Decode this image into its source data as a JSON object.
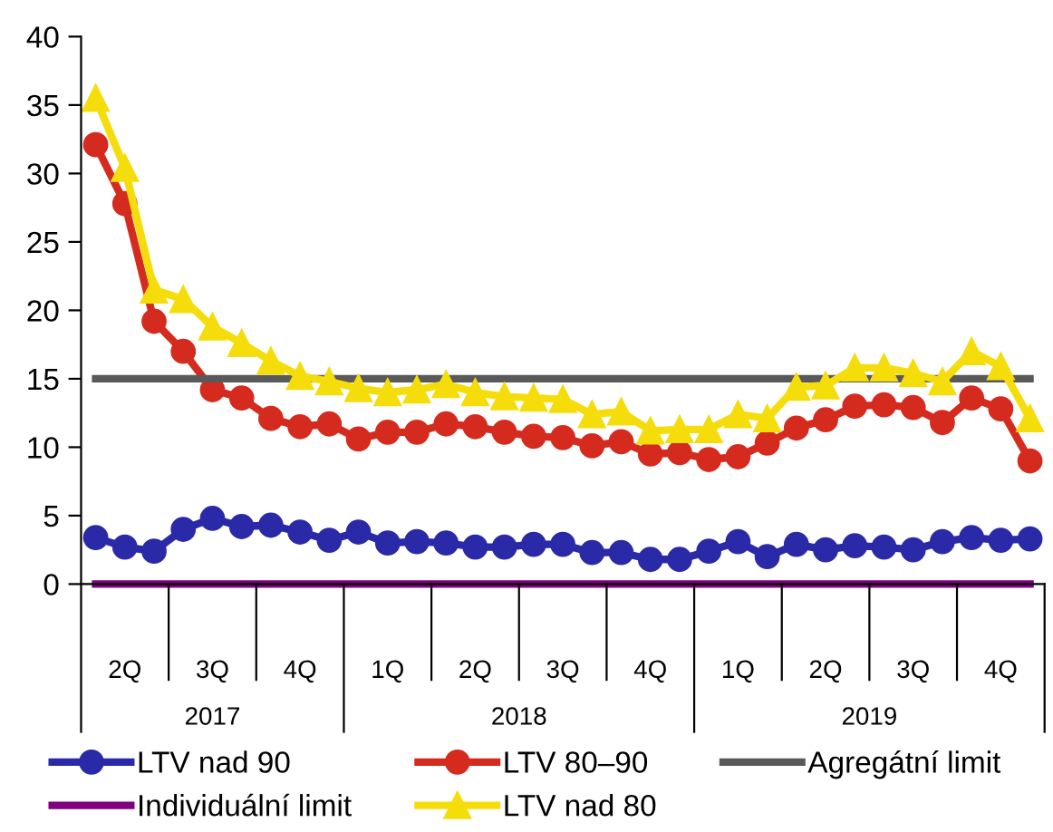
{
  "chart_data": {
    "type": "line",
    "categories": [
      null,
      "2Q",
      null,
      null,
      "3Q",
      null,
      null,
      "4Q",
      null,
      null,
      "1Q",
      null,
      null,
      "2Q",
      null,
      null,
      "3Q",
      null,
      null,
      "4Q",
      null,
      null,
      "1Q",
      null,
      null,
      "2Q",
      null,
      null,
      "3Q",
      null,
      null,
      "4Q",
      null
    ],
    "series": [
      {
        "name": "LTV nad 90",
        "color": "#2a2aa8",
        "marker": "circle",
        "values": [
          3.4,
          2.7,
          2.4,
          4.0,
          4.8,
          4.2,
          4.3,
          3.8,
          3.2,
          3.8,
          3.0,
          3.1,
          3.0,
          2.7,
          2.7,
          2.9,
          2.9,
          2.3,
          2.3,
          1.8,
          1.8,
          2.4,
          3.1,
          2.0,
          2.9,
          2.5,
          2.8,
          2.7,
          2.5,
          3.1,
          3.4,
          3.2,
          3.3
        ]
      },
      {
        "name": "LTV 80–90",
        "color": "#d52b1e",
        "marker": "circle",
        "values": [
          32.1,
          27.8,
          19.2,
          17.0,
          14.2,
          13.6,
          12.1,
          11.5,
          11.7,
          10.6,
          11.1,
          11.1,
          11.7,
          11.5,
          11.1,
          10.8,
          10.7,
          10.1,
          10.4,
          9.5,
          9.6,
          9.1,
          9.3,
          10.3,
          11.4,
          12.0,
          13.0,
          13.1,
          12.9,
          11.8,
          13.6,
          12.8,
          9.0
        ]
      },
      {
        "name": "Agregátní limit",
        "color": "#595959",
        "marker": "none",
        "values": [
          15,
          15,
          15,
          15,
          15,
          15,
          15,
          15,
          15,
          15,
          15,
          15,
          15,
          15,
          15,
          15,
          15,
          15,
          15,
          15,
          15,
          15,
          15,
          15,
          15,
          15,
          15,
          15,
          15,
          15,
          15,
          15,
          15
        ]
      },
      {
        "name": "Individuální limit",
        "color": "#800080",
        "marker": "none",
        "values": [
          0,
          0,
          0,
          0,
          0,
          0,
          0,
          0,
          0,
          0,
          0,
          0,
          0,
          0,
          0,
          0,
          0,
          0,
          0,
          0,
          0,
          0,
          0,
          0,
          0,
          0,
          0,
          0,
          0,
          0,
          0,
          0,
          0
        ]
      },
      {
        "name": "LTV nad 80",
        "color": "#f5dd0c",
        "marker": "triangle",
        "values": [
          35.5,
          30.4,
          21.5,
          20.8,
          18.8,
          17.6,
          16.3,
          15.2,
          14.8,
          14.3,
          14.0,
          14.2,
          14.6,
          14.0,
          13.7,
          13.6,
          13.5,
          12.4,
          12.6,
          11.2,
          11.3,
          11.3,
          12.4,
          12.1,
          14.4,
          14.5,
          15.8,
          15.8,
          15.4,
          14.8,
          17.0,
          15.9,
          12.1
        ]
      }
    ],
    "ylim": [
      0,
      40
    ],
    "yticks": [
      0,
      5,
      10,
      15,
      20,
      25,
      30,
      35,
      40
    ],
    "annotations": [
      "2017",
      "2018",
      "2019"
    ],
    "grid": false,
    "legend": "bottom"
  }
}
